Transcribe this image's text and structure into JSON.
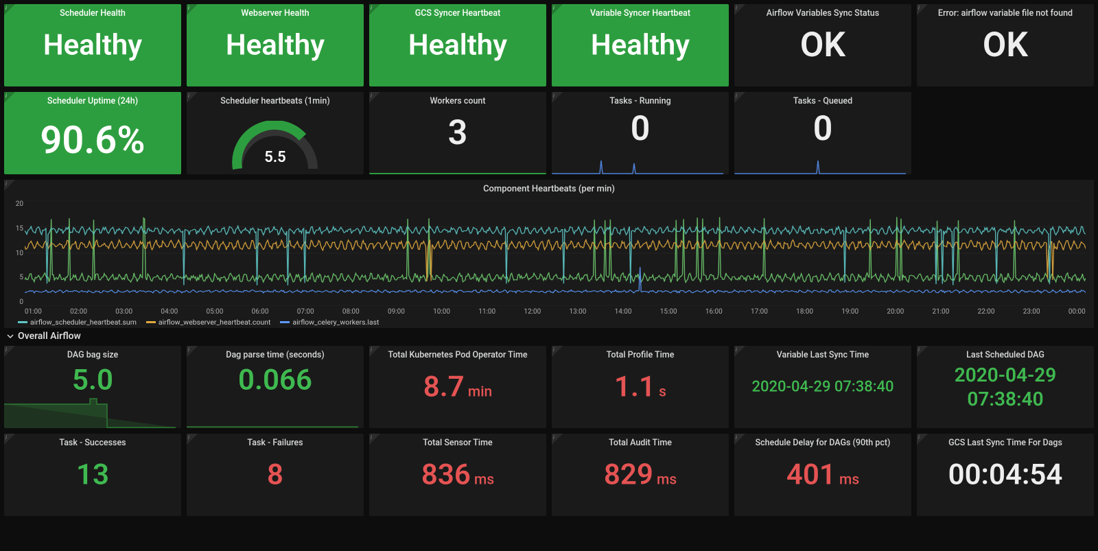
{
  "colors": {
    "bg": "#0d0d0d",
    "panel": "#1a1a1a",
    "panel_green": "#2d9e3f",
    "value_green": "#3fb950",
    "value_red": "#e55353",
    "value_white": "#eeeeee",
    "grid": "#333333",
    "series_teal": "#5ec7c7",
    "series_orange": "#e0a83e",
    "series_blue": "#5c9aff",
    "series_green": "#6ec96e",
    "sparkline_blue": "#4d7fd6",
    "sparkline_green": "#2d7a34"
  },
  "row1": [
    {
      "title": "Scheduler Health",
      "value": "Healthy",
      "green": true
    },
    {
      "title": "Webserver Health",
      "value": "Healthy",
      "green": true
    },
    {
      "title": "GCS Syncer Heartbeat",
      "value": "Healthy",
      "green": true
    },
    {
      "title": "Variable Syncer Heartbeat",
      "value": "Healthy",
      "green": true
    },
    {
      "title": "Airflow Variables Sync Status",
      "value": "OK",
      "green": false
    },
    {
      "title": "Error: airflow variable file not found",
      "value": "OK",
      "green": false
    }
  ],
  "row2": {
    "uptime": {
      "title": "Scheduler Uptime (24h)",
      "value": "90.6%"
    },
    "heartbeats": {
      "title": "Scheduler heartbeats (1min)",
      "value": "5.5",
      "gauge_color": "#2d9e3f",
      "gauge_fill": 0.55
    },
    "workers": {
      "title": "Workers count",
      "value": "3"
    },
    "tasks_running": {
      "title": "Tasks - Running",
      "value": "0"
    },
    "tasks_queued": {
      "title": "Tasks - Queued",
      "value": "0"
    }
  },
  "heartbeat_chart": {
    "title": "Component Heartbeats (per min)",
    "yticks": [
      "20",
      "15",
      "10",
      "5",
      "0"
    ],
    "xticks": [
      "01:00",
      "02:00",
      "03:00",
      "04:00",
      "05:00",
      "06:00",
      "07:00",
      "08:00",
      "09:00",
      "10:00",
      "11:00",
      "12:00",
      "13:00",
      "14:00",
      "15:00",
      "16:00",
      "17:00",
      "18:00",
      "19:00",
      "20:00",
      "21:00",
      "22:00",
      "23:00",
      "00:00"
    ],
    "legend": [
      {
        "label": "airflow_scheduler_heartbeat.sum",
        "color": "#5ec7c7"
      },
      {
        "label": "airflow_webserver_heartbeat.count",
        "color": "#e0a83e"
      },
      {
        "label": "airflow_celery_workers.last",
        "color": "#5c9aff"
      }
    ]
  },
  "section_title": "Overall Airflow",
  "row4": [
    {
      "title": "DAG bag size",
      "value": "5.0",
      "unit": "",
      "color": "green",
      "spark": true
    },
    {
      "title": "Dag parse time (seconds)",
      "value": "0.066",
      "unit": "",
      "color": "green",
      "spark": true
    },
    {
      "title": "Total Kubernetes Pod Operator Time",
      "value": "8.7",
      "unit": " min",
      "color": "red"
    },
    {
      "title": "Total Profile Time",
      "value": "1.1",
      "unit": " s",
      "color": "red"
    },
    {
      "title": "Variable Last Sync Time",
      "value": "2020-04-29 07:38:40",
      "unit": "",
      "color": "green",
      "small": true
    },
    {
      "title": "Last Scheduled DAG",
      "value": "2020-04-29 07:38:40",
      "unit": "",
      "color": "green",
      "twoline": true
    }
  ],
  "row5": [
    {
      "title": "Task - Successes",
      "value": "13",
      "unit": "",
      "color": "green"
    },
    {
      "title": "Task - Failures",
      "value": "8",
      "unit": "",
      "color": "red"
    },
    {
      "title": "Total Sensor Time",
      "value": "836",
      "unit": " ms",
      "color": "red"
    },
    {
      "title": "Total Audit Time",
      "value": "829",
      "unit": " ms",
      "color": "red"
    },
    {
      "title": "Schedule Delay for DAGs (90th pct)",
      "value": "401",
      "unit": " ms",
      "color": "red"
    },
    {
      "title": "GCS Last Sync Time For Dags",
      "value": "00:04:54",
      "unit": "",
      "color": "white"
    }
  ]
}
